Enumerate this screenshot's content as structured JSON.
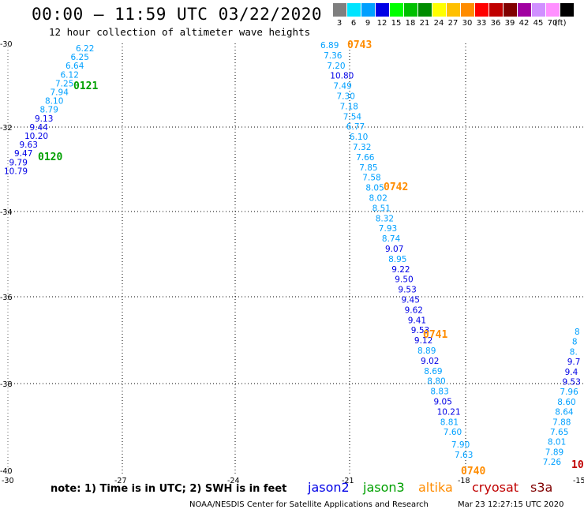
{
  "header": {
    "title": "00:00 – 11:59 UTC 03/22/2020",
    "subtitle": "12 hour collection of altimeter wave heights"
  },
  "scale": {
    "colors": [
      "#7f7f7f",
      "#00e4ff",
      "#00a0ff",
      "#0000e6",
      "#00ff00",
      "#00c000",
      "#008c00",
      "#ffff00",
      "#ffc000",
      "#ff8c00",
      "#ff0000",
      "#c00000",
      "#800000",
      "#a000a0",
      "#d090ff",
      "#ff90ff",
      "#000000"
    ],
    "labels": [
      "3",
      "6",
      "9",
      "12",
      "15",
      "18",
      "21",
      "24",
      "27",
      "30",
      "33",
      "36",
      "39",
      "42",
      "45",
      "70",
      "(ft)"
    ]
  },
  "axes": {
    "lat_labels": [
      "-30",
      "-32",
      "-34",
      "-36",
      "-38",
      "-40"
    ],
    "lon_labels": [
      "-30",
      "-27",
      "-24",
      "-21",
      "-18",
      "-15"
    ]
  },
  "passes": [
    {
      "label": "0121",
      "sat": "jason3"
    },
    {
      "label": "0120",
      "sat": "jason3"
    },
    {
      "label": "0743",
      "sat": "altika"
    },
    {
      "label": "0742",
      "sat": "altika"
    },
    {
      "label": "0741",
      "sat": "altika"
    },
    {
      "label": "0740",
      "sat": "altika"
    },
    {
      "label": "10",
      "sat": "cryosat"
    }
  ],
  "tracks": [
    {
      "name": "track-a",
      "values": [
        "6.22",
        "6.25",
        "6.64",
        "6.12",
        "7.25",
        "7.94",
        "8.10",
        "8.79",
        "9.13",
        "9.44",
        "10.20",
        "9.63",
        "9.47",
        "9.79",
        "10.79"
      ]
    },
    {
      "name": "track-b",
      "values": [
        "6.89",
        "7.36",
        "7.20",
        "10.80",
        "7.49",
        "7.30",
        "7.18",
        "7.54",
        "6.77",
        "6.10",
        "7.32",
        "7.66",
        "7.85",
        "7.58",
        "8.05",
        "8.02",
        "8.51",
        "8.32",
        "7.93",
        "8.74",
        "9.07",
        "8.95",
        "9.22",
        "9.50",
        "9.53",
        "9.45",
        "9.62",
        "9.41",
        "9.53",
        "9.12",
        "8.89",
        "9.02",
        "8.69",
        "8.80",
        "8.83",
        "9.05",
        "10.21",
        "8.81",
        "7.60",
        "7.90",
        "7.63"
      ]
    },
    {
      "name": "track-c",
      "values": [
        "8",
        "8",
        "8.",
        "9.7",
        "9.4",
        "9.53",
        "7.96",
        "8.60",
        "8.64",
        "7.88",
        "7.65",
        "8.01",
        "7.89",
        "7.26"
      ]
    }
  ],
  "footer": {
    "note": "note: 1) Time is in UTC; 2) SWH is in feet",
    "legend": [
      {
        "name": "jason2",
        "color": "#0000e6"
      },
      {
        "name": "jason3",
        "color": "#00a000"
      },
      {
        "name": "altika",
        "color": "#ff8c00"
      },
      {
        "name": "cryosat",
        "color": "#c00000"
      },
      {
        "name": "s3a",
        "color": "#800000"
      }
    ],
    "credit": "NOAA/NESDIS Center for Satellite Applications and Research",
    "timestamp": "Mar 23 12:27:15 UTC 2020"
  }
}
